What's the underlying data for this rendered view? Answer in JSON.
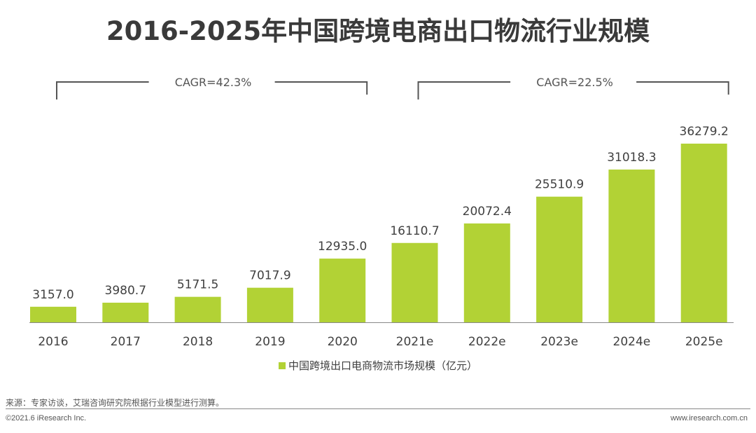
{
  "chart_data": {
    "type": "bar",
    "title": "2016-2025年中国跨境电商出口物流行业规模",
    "categories": [
      "2016",
      "2017",
      "2018",
      "2019",
      "2020",
      "2021e",
      "2022e",
      "2023e",
      "2024e",
      "2025e"
    ],
    "series": [
      {
        "name": "中国跨境出口电商物流市场规模（亿元）",
        "values": [
          3157.0,
          3980.7,
          5171.5,
          7017.9,
          12935.0,
          16110.7,
          20072.4,
          25510.9,
          31018.3,
          36279.2
        ]
      }
    ],
    "value_labels": [
      "3157.0",
      "3980.7",
      "5171.5",
      "7017.9",
      "12935.0",
      "16110.7",
      "20072.4",
      "25510.9",
      "31018.3",
      "36279.2"
    ],
    "ylim": [
      0,
      36279.2
    ],
    "grid": false,
    "legend": "bottom",
    "bar_color": "#b2d235",
    "annotations": [
      {
        "text": "CAGR=42.3%",
        "from": "2016",
        "to": "2020"
      },
      {
        "text": "CAGR=22.5%",
        "from": "2021e",
        "to": "2025e"
      }
    ]
  },
  "footer": {
    "source": "来源：专家访谈，艾瑞咨询研究院根据行业模型进行测算。",
    "copyright": "©2021.6 iResearch Inc.",
    "website": "www.iresearch.com.cn"
  }
}
